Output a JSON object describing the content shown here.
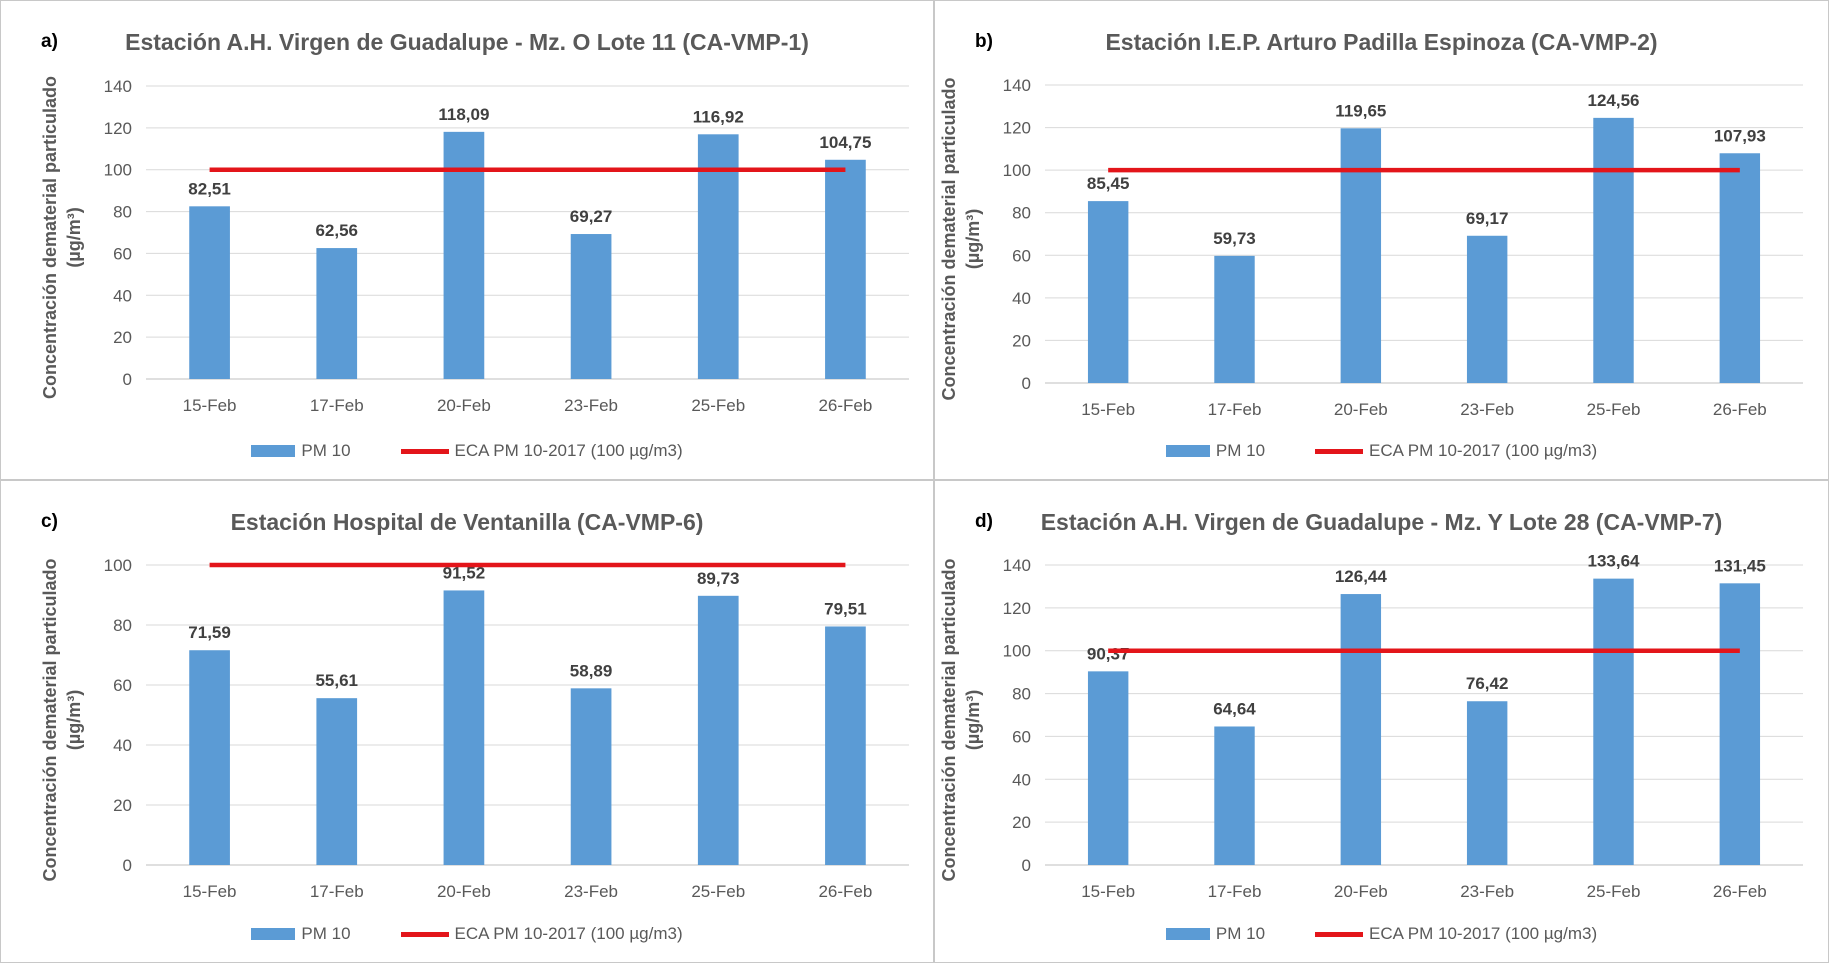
{
  "colors": {
    "bar": "#5b9bd5",
    "line": "#e3151a",
    "grid": "#d9d9d9",
    "axis_text": "#595959"
  },
  "ylabel": [
    "Concentración dematerial particulado",
    "(µg/m³)"
  ],
  "legend": {
    "bar": "PM 10",
    "line": "ECA PM 10-2017 (100 µg/m3)"
  },
  "chart_data": [
    {
      "type": "bar",
      "panel_label": "a)",
      "title": "Estación A.H. Virgen de Guadalupe  - Mz. O Lote 11 (CA-VMP-1)",
      "categories": [
        "15-Feb",
        "17-Feb",
        "20-Feb",
        "23-Feb",
        "25-Feb",
        "26-Feb"
      ],
      "series": [
        {
          "name": "PM 10",
          "values": [
            82.51,
            62.56,
            118.09,
            69.27,
            116.92,
            104.75
          ],
          "labels": [
            "82,51",
            "62,56",
            "118,09",
            "69,27",
            "116,92",
            "104,75"
          ]
        },
        {
          "name": "ECA PM 10-2017 (100 µg/m3)",
          "type": "line",
          "values": [
            100,
            100,
            100,
            100,
            100,
            100
          ]
        }
      ],
      "ylim": [
        0,
        140
      ],
      "yticks": [
        0,
        20,
        40,
        60,
        80,
        100,
        120,
        140
      ],
      "grid": true,
      "legend_position": "bottom"
    },
    {
      "type": "bar",
      "panel_label": "b)",
      "title": "Estación I.E.P. Arturo Padilla Espinoza (CA-VMP-2)",
      "categories": [
        "15-Feb",
        "17-Feb",
        "20-Feb",
        "23-Feb",
        "25-Feb",
        "26-Feb"
      ],
      "series": [
        {
          "name": "PM 10",
          "values": [
            85.45,
            59.73,
            119.65,
            69.17,
            124.56,
            107.93
          ],
          "labels": [
            "85,45",
            "59,73",
            "119,65",
            "69,17",
            "124,56",
            "107,93"
          ]
        },
        {
          "name": "ECA PM 10-2017 (100 µg/m3)",
          "type": "line",
          "values": [
            100,
            100,
            100,
            100,
            100,
            100
          ]
        }
      ],
      "ylim": [
        0,
        140
      ],
      "yticks": [
        0,
        20,
        40,
        60,
        80,
        100,
        120,
        140
      ],
      "grid": true,
      "legend_position": "bottom"
    },
    {
      "type": "bar",
      "panel_label": "c)",
      "title": "Estación Hospital de Ventanilla (CA-VMP-6)",
      "categories": [
        "15-Feb",
        "17-Feb",
        "20-Feb",
        "23-Feb",
        "25-Feb",
        "26-Feb"
      ],
      "series": [
        {
          "name": "PM 10",
          "values": [
            71.59,
            55.61,
            91.52,
            58.89,
            89.73,
            79.51
          ],
          "labels": [
            "71,59",
            "55,61",
            "91,52",
            "58,89",
            "89,73",
            "79,51"
          ]
        },
        {
          "name": "ECA PM 10-2017 (100 µg/m3)",
          "type": "line",
          "values": [
            100,
            100,
            100,
            100,
            100,
            100
          ]
        }
      ],
      "ylim": [
        0,
        100
      ],
      "yticks": [
        0,
        20,
        40,
        60,
        80,
        100
      ],
      "grid": true,
      "legend_position": "bottom"
    },
    {
      "type": "bar",
      "panel_label": "d)",
      "title": "Estación A.H. Virgen de Guadalupe  - Mz. Y Lote 28 (CA-VMP-7)",
      "categories": [
        "15-Feb",
        "17-Feb",
        "20-Feb",
        "23-Feb",
        "25-Feb",
        "26-Feb"
      ],
      "series": [
        {
          "name": "PM 10",
          "values": [
            90.37,
            64.64,
            126.44,
            76.42,
            133.64,
            131.45
          ],
          "labels": [
            "90,37",
            "64,64",
            "126,44",
            "76,42",
            "133,64",
            "131,45"
          ]
        },
        {
          "name": "ECA PM 10-2017 (100 µg/m3)",
          "type": "line",
          "values": [
            100,
            100,
            100,
            100,
            100,
            100
          ]
        }
      ],
      "ylim": [
        0,
        140
      ],
      "yticks": [
        0,
        20,
        40,
        60,
        80,
        100,
        120,
        140
      ],
      "grid": true,
      "legend_position": "bottom"
    }
  ]
}
